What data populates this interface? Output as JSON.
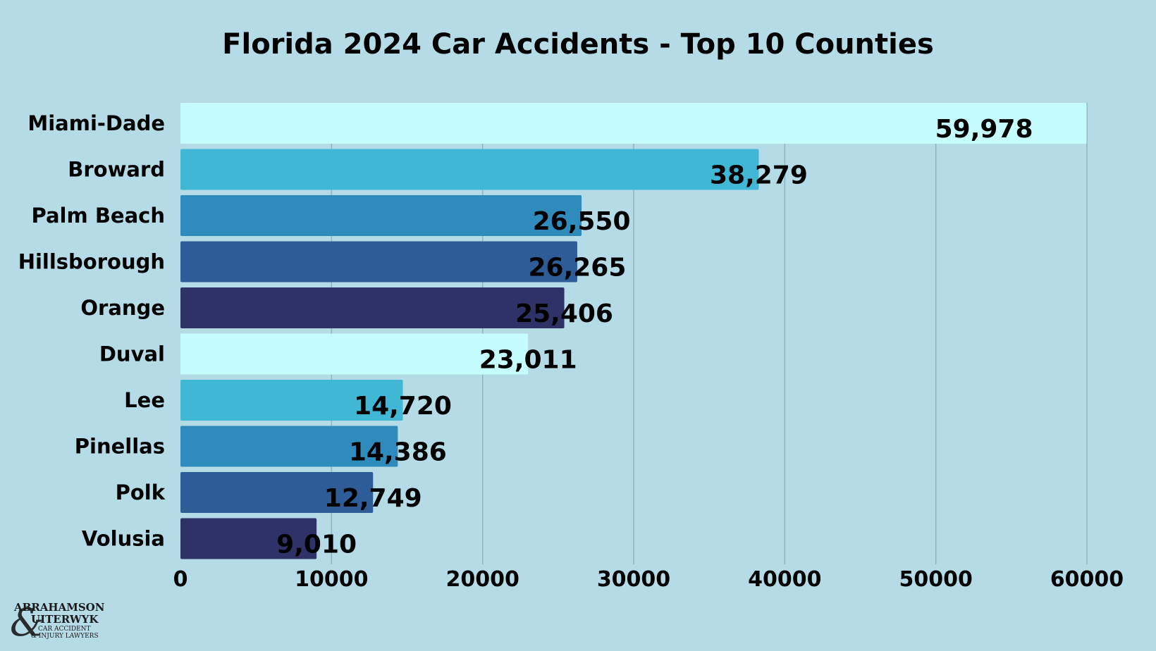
{
  "chart_data": {
    "type": "bar",
    "orientation": "horizontal",
    "title": "Florida 2024 Car Accidents - Top 10 Counties",
    "categories": [
      "Miami-Dade",
      "Broward",
      "Palm Beach",
      "Hillsborough",
      "Orange",
      "Duval",
      "Lee",
      "Pinellas",
      "Polk",
      "Volusia"
    ],
    "values": [
      59978,
      38279,
      26550,
      26265,
      25406,
      23011,
      14720,
      14386,
      12749,
      9010
    ],
    "data_labels": [
      "59,978",
      "38,279",
      "26,550",
      "26,265",
      "25,406",
      "23,011",
      "14,720",
      "14,386",
      "12,749",
      "9,010"
    ],
    "bar_colors": [
      "#c5fdff",
      "#41b7d6",
      "#2e8bbb",
      "#2e5c96",
      "#2f3266",
      "#c5fdff",
      "#41b7d6",
      "#2e8bbb",
      "#2e5c96",
      "#2f3266"
    ],
    "xlim": [
      0,
      60000
    ],
    "x_ticks": [
      0,
      10000,
      20000,
      30000,
      40000,
      50000,
      60000
    ],
    "x_tick_labels": [
      "0",
      "10000",
      "20000",
      "30000",
      "40000",
      "50000",
      "60000"
    ],
    "grid": "vertical",
    "legend": "none"
  },
  "colors": {
    "background": "#b5dbe6",
    "gridline": "#8fb4bf",
    "text": "#000000"
  },
  "logo": {
    "line1": "ABRAHAMSON",
    "line2": "UITERWYK",
    "line3": "CAR ACCIDENT",
    "line4": "& INJURY LAWYERS",
    "monogram": "&"
  }
}
